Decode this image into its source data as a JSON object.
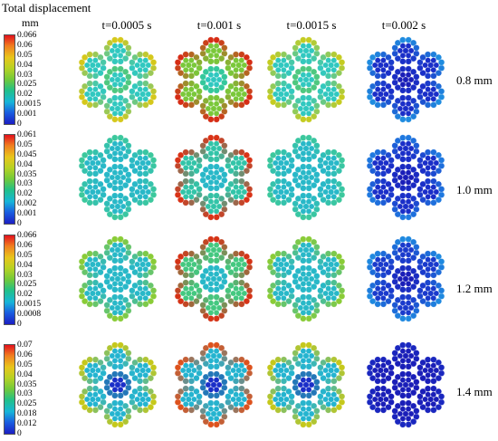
{
  "title": "Total displacement",
  "unit": "mm",
  "column_headers": [
    "t=0.0005 s",
    "t=0.001 s",
    "t=0.0015 s",
    "t=0.002 s"
  ],
  "rows": [
    {
      "label": "0.8 mm",
      "legend": [
        "0.066",
        "0.06",
        "0.05",
        "0.04",
        "0.03",
        "0.025",
        "0.02",
        "0.0015",
        "0.001",
        "0"
      ],
      "panels": [
        {
          "outer_in": "#30c8c0",
          "outer_out": "#d8c818",
          "center": "#30c8c0",
          "mid": "#6cc840"
        },
        {
          "outer_in": "#7ac83a",
          "outer_out": "#d82a14",
          "center": "#30c8c0",
          "mid": "#38c878"
        },
        {
          "outer_in": "#30c8c0",
          "outer_out": "#c8cc1e",
          "center": "#30c8c0",
          "mid": "#6cc840"
        },
        {
          "outer_in": "#1a2ec8",
          "outer_out": "#1f8ee0",
          "center": "#1a1eb8",
          "mid": "#1a3cd0"
        }
      ]
    },
    {
      "label": "1.0 mm",
      "legend": [
        "0.061",
        "0.05",
        "0.045",
        "0.04",
        "0.035",
        "0.03",
        "0.02",
        "0.002",
        "0.001",
        "0"
      ],
      "panels": [
        {
          "outer_in": "#28b8c8",
          "outer_out": "#3cc89c",
          "center": "#28b8c8",
          "mid": "#28b8c8"
        },
        {
          "outer_in": "#32c4a8",
          "outer_out": "#dc3014",
          "center": "#28b8c8",
          "mid": "#28b8c8"
        },
        {
          "outer_in": "#28b8c8",
          "outer_out": "#3cc89c",
          "center": "#28b8c8",
          "mid": "#28b8c8"
        },
        {
          "outer_in": "#1a2ec8",
          "outer_out": "#1f7ae0",
          "center": "#1a1eb8",
          "mid": "#1a36cc"
        }
      ]
    },
    {
      "label": "1.2 mm",
      "legend": [
        "0.066",
        "0.06",
        "0.05",
        "0.04",
        "0.03",
        "0.025",
        "0.02",
        "0.0015",
        "0.0008",
        "0"
      ],
      "panels": [
        {
          "outer_in": "#28b8c8",
          "outer_out": "#8ccc34",
          "center": "#28b8c8",
          "mid": "#28b8c8"
        },
        {
          "outer_in": "#44c880",
          "outer_out": "#d83014",
          "center": "#28b8c8",
          "mid": "#28b8c8"
        },
        {
          "outer_in": "#28b8c8",
          "outer_out": "#8ccc34",
          "center": "#28b8c8",
          "mid": "#28b8c8"
        },
        {
          "outer_in": "#1a3acc",
          "outer_out": "#1f8ae0",
          "center": "#1a1eb8",
          "mid": "#1a3ccc"
        }
      ]
    },
    {
      "label": "1.4 mm",
      "legend": [
        "0.07",
        "0.06",
        "0.05",
        "0.04",
        "0.035",
        "0.03",
        "0.025",
        "0.018",
        "0.012",
        "0"
      ],
      "panels": [
        {
          "outer_in": "#24b4d0",
          "outer_out": "#c8c818",
          "center": "#1a2ec8",
          "mid": "#2cc0a8"
        },
        {
          "outer_in": "#24b4d0",
          "outer_out": "#e0501a",
          "center": "#1a2ec8",
          "mid": "#2cc0a8"
        },
        {
          "outer_in": "#24b4d0",
          "outer_out": "#c8c818",
          "center": "#1a2ec8",
          "mid": "#2cc0a8"
        },
        {
          "outer_in": "#1a1eb8",
          "outer_out": "#1a28c0",
          "center": "#1a1eb8",
          "mid": "#1a1eb8"
        }
      ]
    }
  ]
}
